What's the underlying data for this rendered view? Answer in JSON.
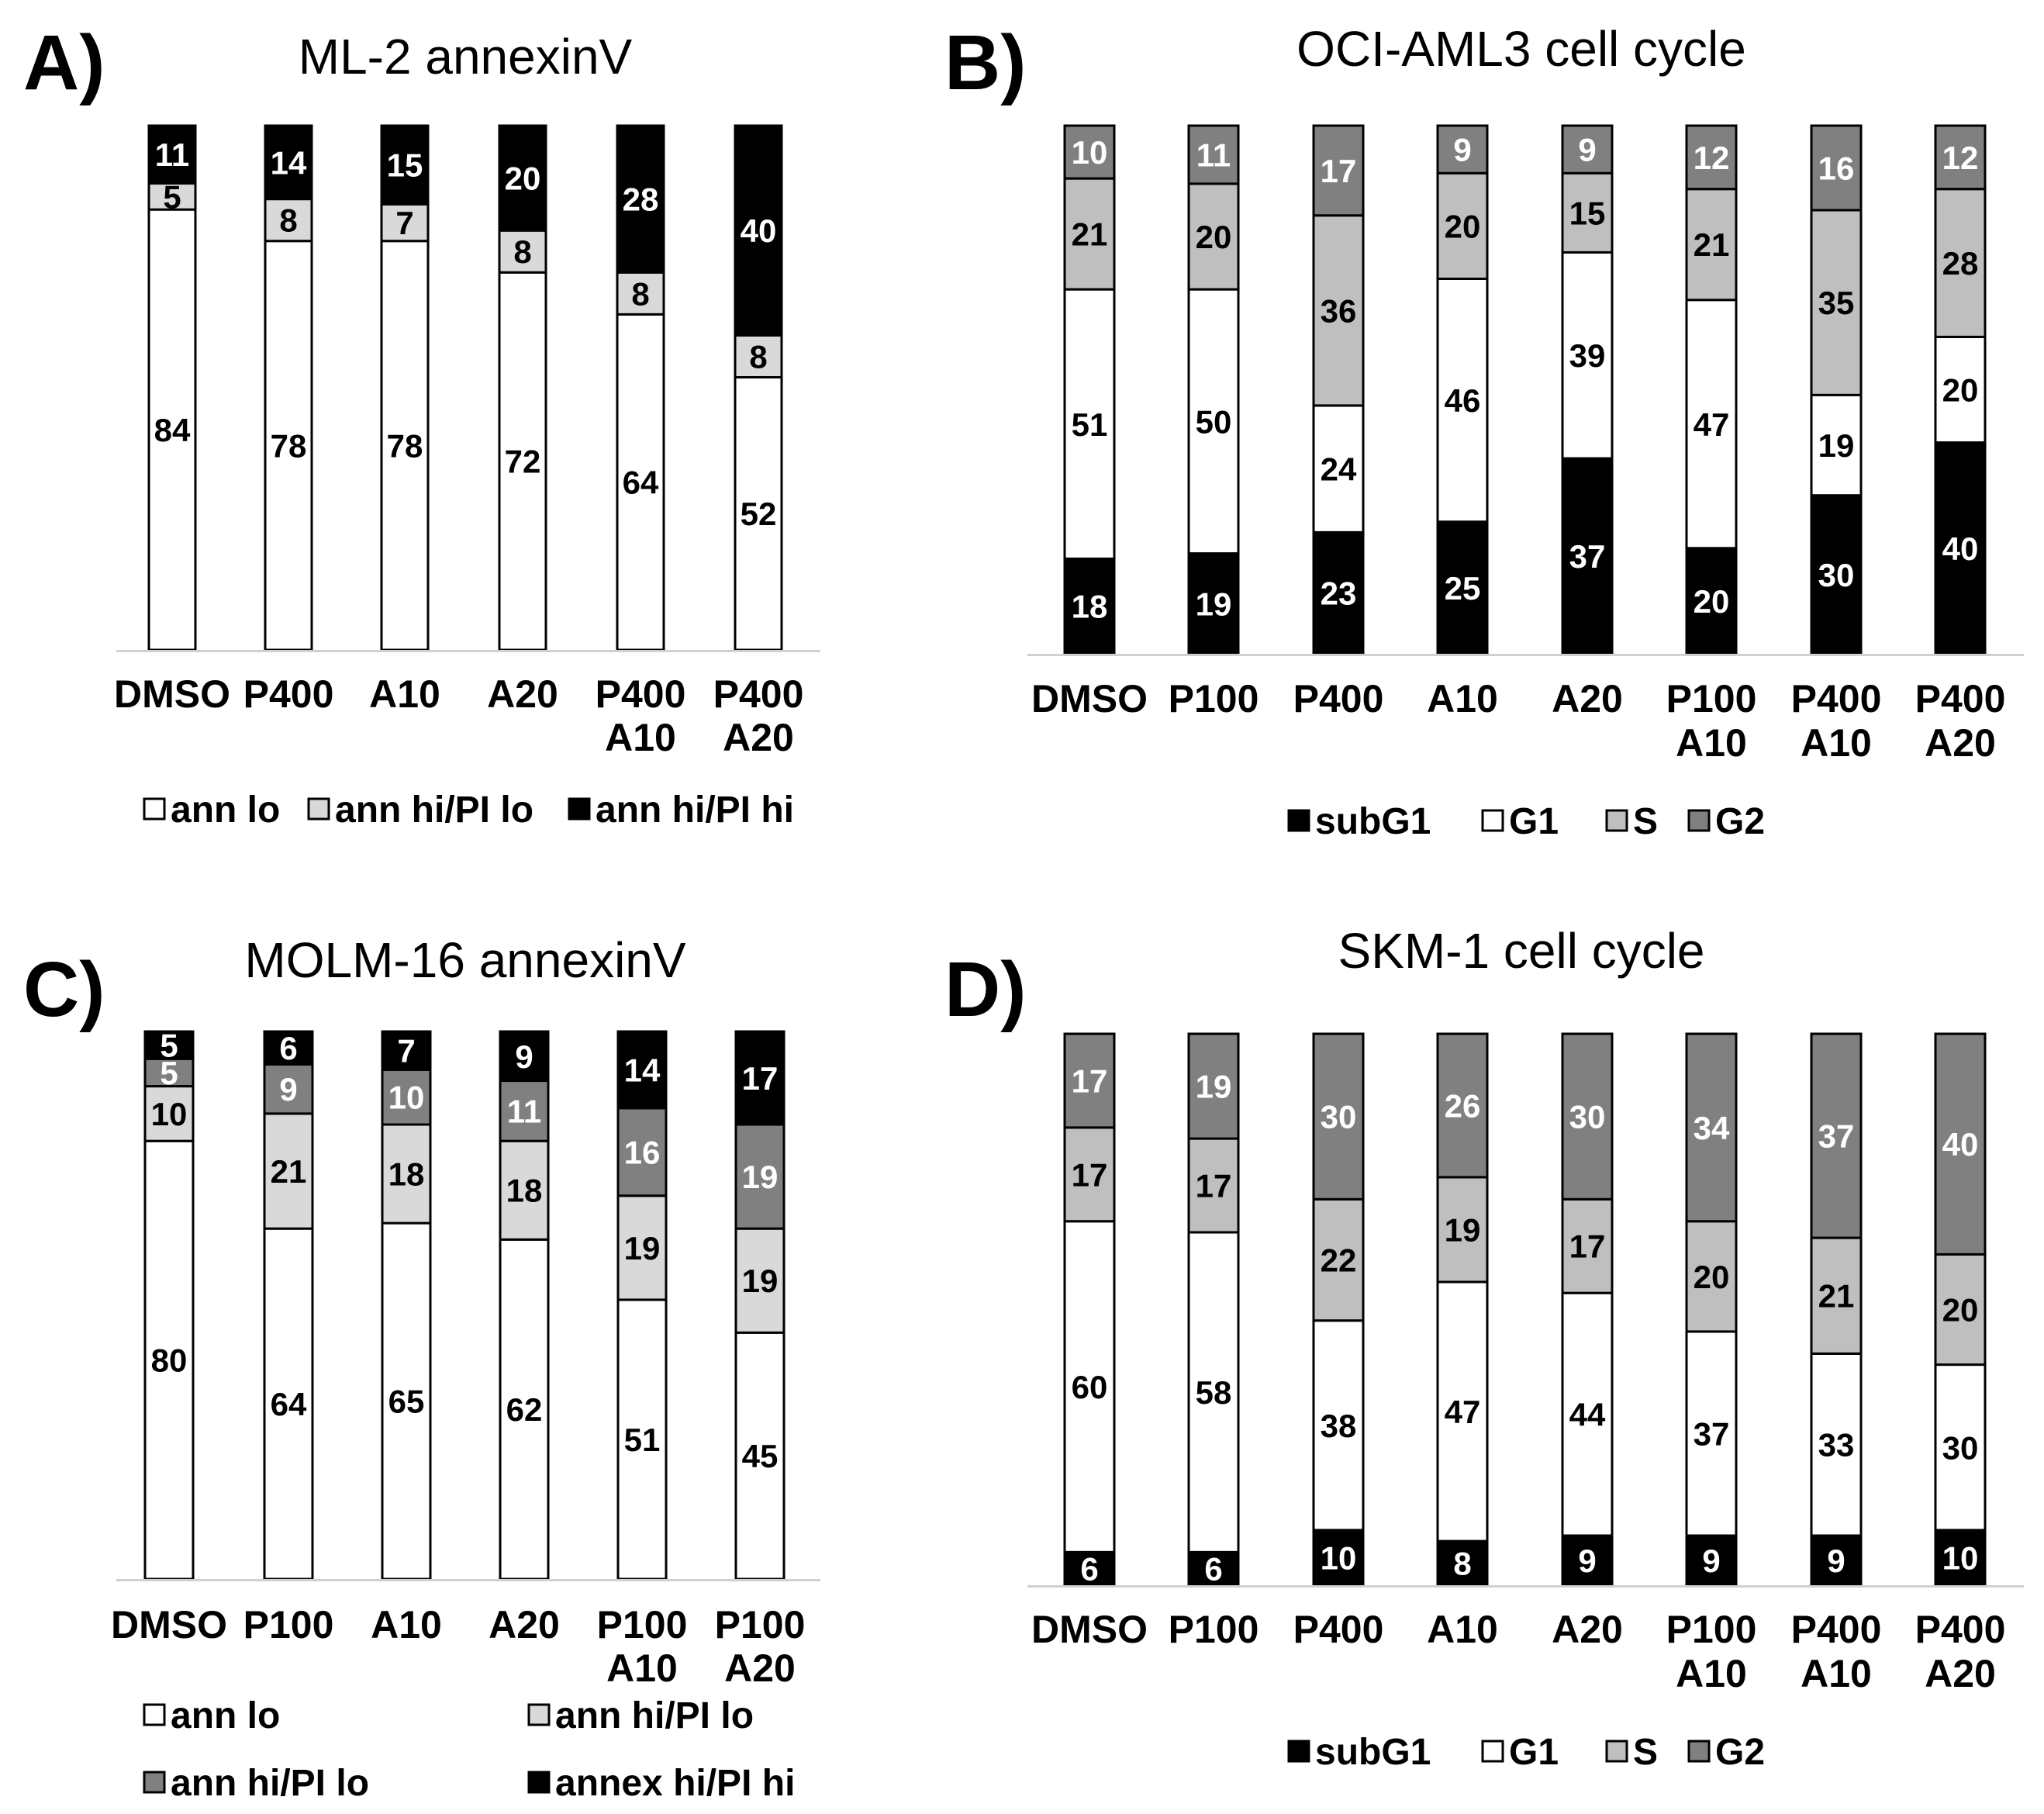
{
  "chart_data": [
    {
      "panel": "A)",
      "type": "bar",
      "stacked": true,
      "title": "ML-2 annexinV",
      "categories": [
        "DMSO",
        "P400",
        "A10",
        "A20",
        "P400\nA10",
        "P400\nA20"
      ],
      "series": [
        {
          "name": "ann lo",
          "color": "#ffffff",
          "values": [
            84,
            78,
            78,
            72,
            64,
            52
          ]
        },
        {
          "name": "ann hi/PI lo",
          "color": "#d9d9d9",
          "values": [
            5,
            8,
            7,
            8,
            8,
            8
          ]
        },
        {
          "name": "ann hi/PI hi",
          "color": "#000000",
          "values": [
            11,
            14,
            15,
            20,
            28,
            40
          ]
        }
      ],
      "legend": [
        "ann lo",
        "ann hi/PI lo",
        "ann hi/PI hi"
      ],
      "ylim": [
        0,
        100
      ]
    },
    {
      "panel": "B)",
      "type": "bar",
      "stacked": true,
      "title": "OCI-AML3 cell cycle",
      "categories": [
        "DMSO",
        "P100",
        "P400",
        "A10",
        "A20",
        "P100\nA10",
        "P400\nA10",
        "P400\nA20"
      ],
      "series": [
        {
          "name": "subG1",
          "color": "#000000",
          "values": [
            18,
            19,
            23,
            25,
            37,
            20,
            30,
            40
          ]
        },
        {
          "name": "G1",
          "color": "#ffffff",
          "values": [
            51,
            50,
            24,
            46,
            39,
            47,
            19,
            20
          ]
        },
        {
          "name": "S",
          "color": "#bfbfbf",
          "values": [
            21,
            20,
            36,
            20,
            15,
            21,
            35,
            28
          ]
        },
        {
          "name": "G2",
          "color": "#808080",
          "values": [
            10,
            11,
            17,
            9,
            9,
            12,
            16,
            12
          ]
        }
      ],
      "legend": [
        "subG1",
        "G1",
        "S",
        "G2"
      ],
      "ylim": [
        0,
        100
      ]
    },
    {
      "panel": "C)",
      "type": "bar",
      "stacked": true,
      "title": "MOLM-16 annexinV",
      "categories": [
        "DMSO",
        "P100",
        "A10",
        "A20",
        "P100\nA10",
        "P100\nA20"
      ],
      "series": [
        {
          "name": "ann lo",
          "color": "#ffffff",
          "values": [
            80,
            64,
            65,
            62,
            51,
            45
          ]
        },
        {
          "name": "ann hi/PI lo",
          "color": "#d9d9d9",
          "values": [
            10,
            21,
            18,
            18,
            19,
            19
          ]
        },
        {
          "name": "ann hi/PI lo",
          "color": "#808080",
          "values": [
            5,
            9,
            10,
            11,
            16,
            19
          ]
        },
        {
          "name": "annex hi/PI hi",
          "color": "#000000",
          "values": [
            5,
            6,
            7,
            9,
            14,
            17
          ]
        }
      ],
      "legend": [
        "ann lo",
        "ann hi/PI lo",
        "ann hi/PI lo",
        "annex hi/PI hi"
      ],
      "ylim": [
        0,
        100
      ]
    },
    {
      "panel": "D)",
      "type": "bar",
      "stacked": true,
      "title": "SKM-1 cell cycle",
      "categories": [
        "DMSO",
        "P100",
        "P400",
        "A10",
        "A20",
        "P100\nA10",
        "P400\nA10",
        "P400\nA20"
      ],
      "series": [
        {
          "name": "subG1",
          "color": "#000000",
          "values": [
            6,
            6,
            10,
            8,
            9,
            9,
            9,
            10
          ]
        },
        {
          "name": "G1",
          "color": "#ffffff",
          "values": [
            60,
            58,
            38,
            47,
            44,
            37,
            33,
            30
          ]
        },
        {
          "name": "S",
          "color": "#bfbfbf",
          "values": [
            17,
            17,
            22,
            19,
            17,
            20,
            21,
            20
          ]
        },
        {
          "name": "G2",
          "color": "#808080",
          "values": [
            17,
            19,
            30,
            26,
            30,
            34,
            37,
            40
          ]
        }
      ],
      "legend": [
        "subG1",
        "G1",
        "S",
        "G2"
      ],
      "ylim": [
        0,
        100
      ]
    }
  ]
}
